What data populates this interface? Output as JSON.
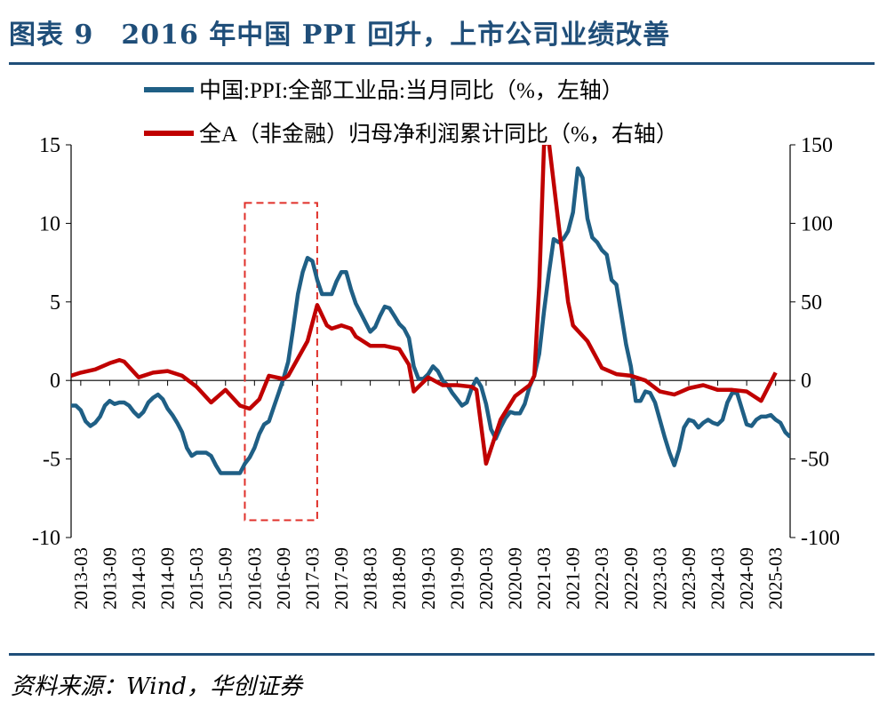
{
  "figure": {
    "title": "图表 9　2016 年中国 PPI 回升，上市公司业绩改善",
    "source": "资料来源：Wind，华创证券"
  },
  "colors": {
    "ppi": "#1f5f85",
    "profit": "#c00000",
    "brand": "#1f4e79",
    "highlight": "#e0302a"
  },
  "chart_data": {
    "type": "line",
    "y_left": {
      "range": [
        -10,
        15
      ],
      "ticks": [
        15,
        10,
        5,
        0,
        -5,
        -10
      ]
    },
    "y_right": {
      "range": [
        -100,
        150
      ],
      "ticks": [
        150,
        100,
        50,
        0,
        -50,
        -100
      ]
    },
    "x_tick_labels": [
      "2013-03",
      "2013-09",
      "2014-03",
      "2014-09",
      "2015-03",
      "2015-09",
      "2016-03",
      "2016-09",
      "2017-03",
      "2017-09",
      "2018-03",
      "2018-09",
      "2019-03",
      "2019-09",
      "2020-03",
      "2020-09",
      "2021-03",
      "2021-09",
      "2022-03",
      "2022-09",
      "2023-03",
      "2023-09",
      "2024-03",
      "2024-09",
      "2025-03"
    ],
    "highlight_box": {
      "from": "2016-01",
      "to": "2017-04",
      "style": "dashed"
    },
    "series": [
      {
        "name": "中国:PPI:全部工业品:当月同比（%，左轴）",
        "axis": "left",
        "color": "#1f5f85",
        "points": [
          [
            "2013-01",
            -1.6
          ],
          [
            "2013-02",
            -1.6
          ],
          [
            "2013-03",
            -1.9
          ],
          [
            "2013-04",
            -2.6
          ],
          [
            "2013-05",
            -2.9
          ],
          [
            "2013-06",
            -2.7
          ],
          [
            "2013-07",
            -2.3
          ],
          [
            "2013-08",
            -1.6
          ],
          [
            "2013-09",
            -1.3
          ],
          [
            "2013-10",
            -1.5
          ],
          [
            "2013-11",
            -1.4
          ],
          [
            "2013-12",
            -1.4
          ],
          [
            "2014-01",
            -1.6
          ],
          [
            "2014-02",
            -2.0
          ],
          [
            "2014-03",
            -2.3
          ],
          [
            "2014-04",
            -2.0
          ],
          [
            "2014-05",
            -1.4
          ],
          [
            "2014-06",
            -1.1
          ],
          [
            "2014-07",
            -0.9
          ],
          [
            "2014-08",
            -1.2
          ],
          [
            "2014-09",
            -1.8
          ],
          [
            "2014-10",
            -2.2
          ],
          [
            "2014-11",
            -2.7
          ],
          [
            "2014-12",
            -3.3
          ],
          [
            "2015-01",
            -4.3
          ],
          [
            "2015-02",
            -4.8
          ],
          [
            "2015-03",
            -4.6
          ],
          [
            "2015-04",
            -4.6
          ],
          [
            "2015-05",
            -4.6
          ],
          [
            "2015-06",
            -4.8
          ],
          [
            "2015-07",
            -5.4
          ],
          [
            "2015-08",
            -5.9
          ],
          [
            "2015-09",
            -5.9
          ],
          [
            "2015-10",
            -5.9
          ],
          [
            "2015-11",
            -5.9
          ],
          [
            "2015-12",
            -5.9
          ],
          [
            "2016-01",
            -5.3
          ],
          [
            "2016-02",
            -4.9
          ],
          [
            "2016-03",
            -4.3
          ],
          [
            "2016-04",
            -3.4
          ],
          [
            "2016-05",
            -2.8
          ],
          [
            "2016-06",
            -2.6
          ],
          [
            "2016-07",
            -1.7
          ],
          [
            "2016-08",
            -0.8
          ],
          [
            "2016-09",
            0.1
          ],
          [
            "2016-10",
            1.2
          ],
          [
            "2016-11",
            3.3
          ],
          [
            "2016-12",
            5.5
          ],
          [
            "2017-01",
            6.9
          ],
          [
            "2017-02",
            7.8
          ],
          [
            "2017-03",
            7.6
          ],
          [
            "2017-04",
            6.4
          ],
          [
            "2017-05",
            5.5
          ],
          [
            "2017-06",
            5.5
          ],
          [
            "2017-07",
            5.5
          ],
          [
            "2017-08",
            6.3
          ],
          [
            "2017-09",
            6.9
          ],
          [
            "2017-10",
            6.9
          ],
          [
            "2017-11",
            5.8
          ],
          [
            "2017-12",
            4.9
          ],
          [
            "2018-01",
            4.3
          ],
          [
            "2018-02",
            3.7
          ],
          [
            "2018-03",
            3.1
          ],
          [
            "2018-04",
            3.4
          ],
          [
            "2018-05",
            4.1
          ],
          [
            "2018-06",
            4.7
          ],
          [
            "2018-07",
            4.6
          ],
          [
            "2018-08",
            4.1
          ],
          [
            "2018-09",
            3.6
          ],
          [
            "2018-10",
            3.3
          ],
          [
            "2018-11",
            2.7
          ],
          [
            "2018-12",
            0.9
          ],
          [
            "2019-01",
            0.1
          ],
          [
            "2019-02",
            0.1
          ],
          [
            "2019-03",
            0.4
          ],
          [
            "2019-04",
            0.9
          ],
          [
            "2019-05",
            0.6
          ],
          [
            "2019-06",
            0.0
          ],
          [
            "2019-07",
            -0.3
          ],
          [
            "2019-08",
            -0.8
          ],
          [
            "2019-09",
            -1.2
          ],
          [
            "2019-10",
            -1.6
          ],
          [
            "2019-11",
            -1.4
          ],
          [
            "2019-12",
            -0.5
          ],
          [
            "2020-01",
            0.1
          ],
          [
            "2020-02",
            -0.4
          ],
          [
            "2020-03",
            -1.5
          ],
          [
            "2020-04",
            -3.1
          ],
          [
            "2020-05",
            -3.7
          ],
          [
            "2020-06",
            -3.0
          ],
          [
            "2020-07",
            -2.4
          ],
          [
            "2020-08",
            -2.0
          ],
          [
            "2020-09",
            -2.1
          ],
          [
            "2020-10",
            -2.1
          ],
          [
            "2020-11",
            -1.5
          ],
          [
            "2020-12",
            -0.4
          ],
          [
            "2021-01",
            0.3
          ],
          [
            "2021-02",
            1.7
          ],
          [
            "2021-03",
            4.4
          ],
          [
            "2021-04",
            6.8
          ],
          [
            "2021-05",
            9.0
          ],
          [
            "2021-06",
            8.8
          ],
          [
            "2021-07",
            9.0
          ],
          [
            "2021-08",
            9.5
          ],
          [
            "2021-09",
            10.7
          ],
          [
            "2021-10",
            13.5
          ],
          [
            "2021-11",
            12.9
          ],
          [
            "2021-12",
            10.3
          ],
          [
            "2022-01",
            9.1
          ],
          [
            "2022-02",
            8.8
          ],
          [
            "2022-03",
            8.3
          ],
          [
            "2022-04",
            8.0
          ],
          [
            "2022-05",
            6.4
          ],
          [
            "2022-06",
            6.1
          ],
          [
            "2022-07",
            4.2
          ],
          [
            "2022-08",
            2.3
          ],
          [
            "2022-09",
            0.9
          ],
          [
            "2022-10",
            -1.3
          ],
          [
            "2022-11",
            -1.3
          ],
          [
            "2022-12",
            -0.7
          ],
          [
            "2023-01",
            -0.8
          ],
          [
            "2023-02",
            -1.4
          ],
          [
            "2023-03",
            -2.5
          ],
          [
            "2023-04",
            -3.6
          ],
          [
            "2023-05",
            -4.6
          ],
          [
            "2023-06",
            -5.4
          ],
          [
            "2023-07",
            -4.4
          ],
          [
            "2023-08",
            -3.0
          ],
          [
            "2023-09",
            -2.5
          ],
          [
            "2023-10",
            -2.6
          ],
          [
            "2023-11",
            -3.0
          ],
          [
            "2023-12",
            -2.7
          ],
          [
            "2024-01",
            -2.5
          ],
          [
            "2024-02",
            -2.7
          ],
          [
            "2024-03",
            -2.8
          ],
          [
            "2024-04",
            -2.5
          ],
          [
            "2024-05",
            -1.4
          ],
          [
            "2024-06",
            -0.8
          ],
          [
            "2024-07",
            -0.8
          ],
          [
            "2024-08",
            -1.8
          ],
          [
            "2024-09",
            -2.8
          ],
          [
            "2024-10",
            -2.9
          ],
          [
            "2024-11",
            -2.5
          ],
          [
            "2024-12",
            -2.3
          ],
          [
            "2025-01",
            -2.3
          ],
          [
            "2025-02",
            -2.2
          ],
          [
            "2025-03",
            -2.5
          ],
          [
            "2025-04",
            -2.7
          ],
          [
            "2025-05",
            -3.3
          ],
          [
            "2025-06",
            -3.6
          ]
        ]
      },
      {
        "name": "全A（非金融）归母净利润累计同比（%，右轴）",
        "axis": "right",
        "color": "#c00000",
        "points": [
          [
            "2013-01",
            3
          ],
          [
            "2013-03",
            5
          ],
          [
            "2013-06",
            7
          ],
          [
            "2013-09",
            11
          ],
          [
            "2013-11",
            13
          ],
          [
            "2013-12",
            12
          ],
          [
            "2014-03",
            2
          ],
          [
            "2014-06",
            5
          ],
          [
            "2014-09",
            6
          ],
          [
            "2014-12",
            3
          ],
          [
            "2015-03",
            -4
          ],
          [
            "2015-06",
            -14
          ],
          [
            "2015-09",
            -6
          ],
          [
            "2015-12",
            -16
          ],
          [
            "2016-02",
            -18
          ],
          [
            "2016-04",
            -12
          ],
          [
            "2016-06",
            3
          ],
          [
            "2016-09",
            1
          ],
          [
            "2016-10",
            3
          ],
          [
            "2016-12",
            14
          ],
          [
            "2017-02",
            25
          ],
          [
            "2017-04",
            48
          ],
          [
            "2017-06",
            35
          ],
          [
            "2017-07",
            33
          ],
          [
            "2017-09",
            35
          ],
          [
            "2017-11",
            33
          ],
          [
            "2017-12",
            28
          ],
          [
            "2018-03",
            22
          ],
          [
            "2018-06",
            22
          ],
          [
            "2018-09",
            20
          ],
          [
            "2018-11",
            10
          ],
          [
            "2018-12",
            -7
          ],
          [
            "2019-03",
            2
          ],
          [
            "2019-06",
            -3
          ],
          [
            "2019-09",
            -3
          ],
          [
            "2019-12",
            -4
          ],
          [
            "2020-01",
            -6
          ],
          [
            "2020-03",
            -53
          ],
          [
            "2020-06",
            -25
          ],
          [
            "2020-09",
            -10
          ],
          [
            "2020-12",
            -3
          ],
          [
            "2021-01",
            3
          ],
          [
            "2021-02",
            60
          ],
          [
            "2021-03",
            150
          ],
          [
            "2021-04",
            152
          ],
          [
            "2021-06",
            100
          ],
          [
            "2021-08",
            50
          ],
          [
            "2021-09",
            35
          ],
          [
            "2021-12",
            25
          ],
          [
            "2022-03",
            8
          ],
          [
            "2022-06",
            4
          ],
          [
            "2022-09",
            3
          ],
          [
            "2022-12",
            0
          ],
          [
            "2023-03",
            -7
          ],
          [
            "2023-06",
            -9
          ],
          [
            "2023-09",
            -5
          ],
          [
            "2023-12",
            -3
          ],
          [
            "2024-03",
            -6
          ],
          [
            "2024-06",
            -6
          ],
          [
            "2024-09",
            -7
          ],
          [
            "2024-12",
            -13
          ],
          [
            "2025-03",
            5
          ]
        ]
      }
    ]
  }
}
